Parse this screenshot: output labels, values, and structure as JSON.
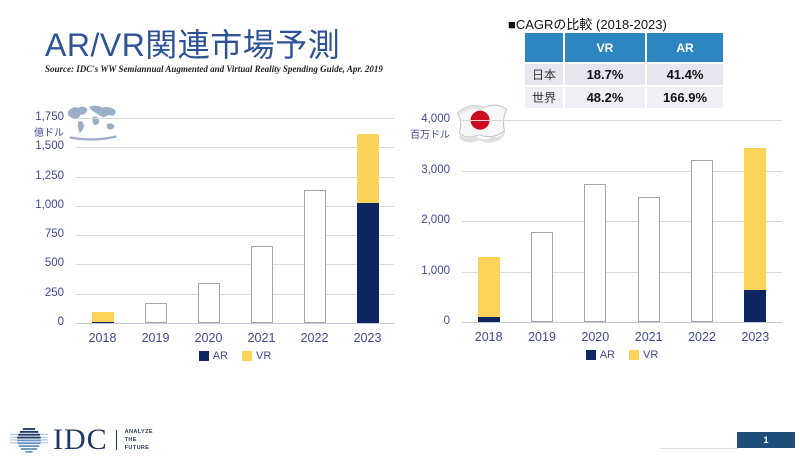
{
  "slide": {
    "title": "AR/VR関連市場予測",
    "source": "Source:  IDC's WW Semiannual Augmented and Virtual Reality Spending Guide, Apr. 2019"
  },
  "cagr_table": {
    "title": "■CAGRの比較 (2018-2023)",
    "headers": [
      "",
      "VR",
      "AR"
    ],
    "rows": [
      {
        "label": "日本",
        "vr": "18.7%",
        "ar": "41.4%"
      },
      {
        "label": "世界",
        "vr": "48.2%",
        "ar": "166.9%"
      }
    ]
  },
  "chart_data": [
    {
      "type": "bar",
      "stacked": true,
      "region_icon": "world-map-icon",
      "ylabel_unit": "億ドル",
      "ylim": [
        0,
        1750
      ],
      "tick_step": 250,
      "grid": true,
      "legend_position": "bottom",
      "categories": [
        "2018",
        "2019",
        "2020",
        "2021",
        "2022",
        "2023"
      ],
      "series": [
        {
          "name": "AR",
          "color": "#0D2561",
          "values": [
            8,
            null,
            null,
            null,
            null,
            1025
          ]
        },
        {
          "name": "VR",
          "color": "#FBD35B",
          "values": [
            83,
            null,
            null,
            null,
            null,
            585
          ]
        }
      ],
      "outline_totals": [
        null,
        175,
        340,
        660,
        1140,
        null
      ],
      "legend": [
        "AR",
        "VR"
      ]
    },
    {
      "type": "bar",
      "stacked": true,
      "region_icon": "japan-flag-icon",
      "ylabel_unit": "百万ドル",
      "ylim": [
        0,
        4000
      ],
      "tick_step": 1000,
      "grid": true,
      "legend_position": "bottom",
      "categories": [
        "2018",
        "2019",
        "2020",
        "2021",
        "2022",
        "2023"
      ],
      "series": [
        {
          "name": "AR",
          "color": "#0D2561",
          "values": [
            100,
            null,
            null,
            null,
            null,
            640
          ]
        },
        {
          "name": "VR",
          "color": "#FBD35B",
          "values": [
            1185,
            null,
            null,
            null,
            null,
            2800
          ]
        }
      ],
      "outline_totals": [
        null,
        1780,
        2730,
        2480,
        3200,
        null
      ],
      "legend": [
        "AR",
        "VR"
      ]
    }
  ],
  "footer": {
    "logo_text": "IDC",
    "logo_tagline": "ANALYZE THE FUTURE",
    "page_number": "1"
  },
  "colors": {
    "title": "#2E5395",
    "ar_bar": "#0D2561",
    "vr_bar": "#FBD35B",
    "table_header": "#2E86C1",
    "axis_label": "#414896",
    "gridline": "#D9D9D9",
    "bar_outline": "#A6A6A6",
    "page_box": "#1F4E79",
    "idc_navy": "#1F3864"
  }
}
